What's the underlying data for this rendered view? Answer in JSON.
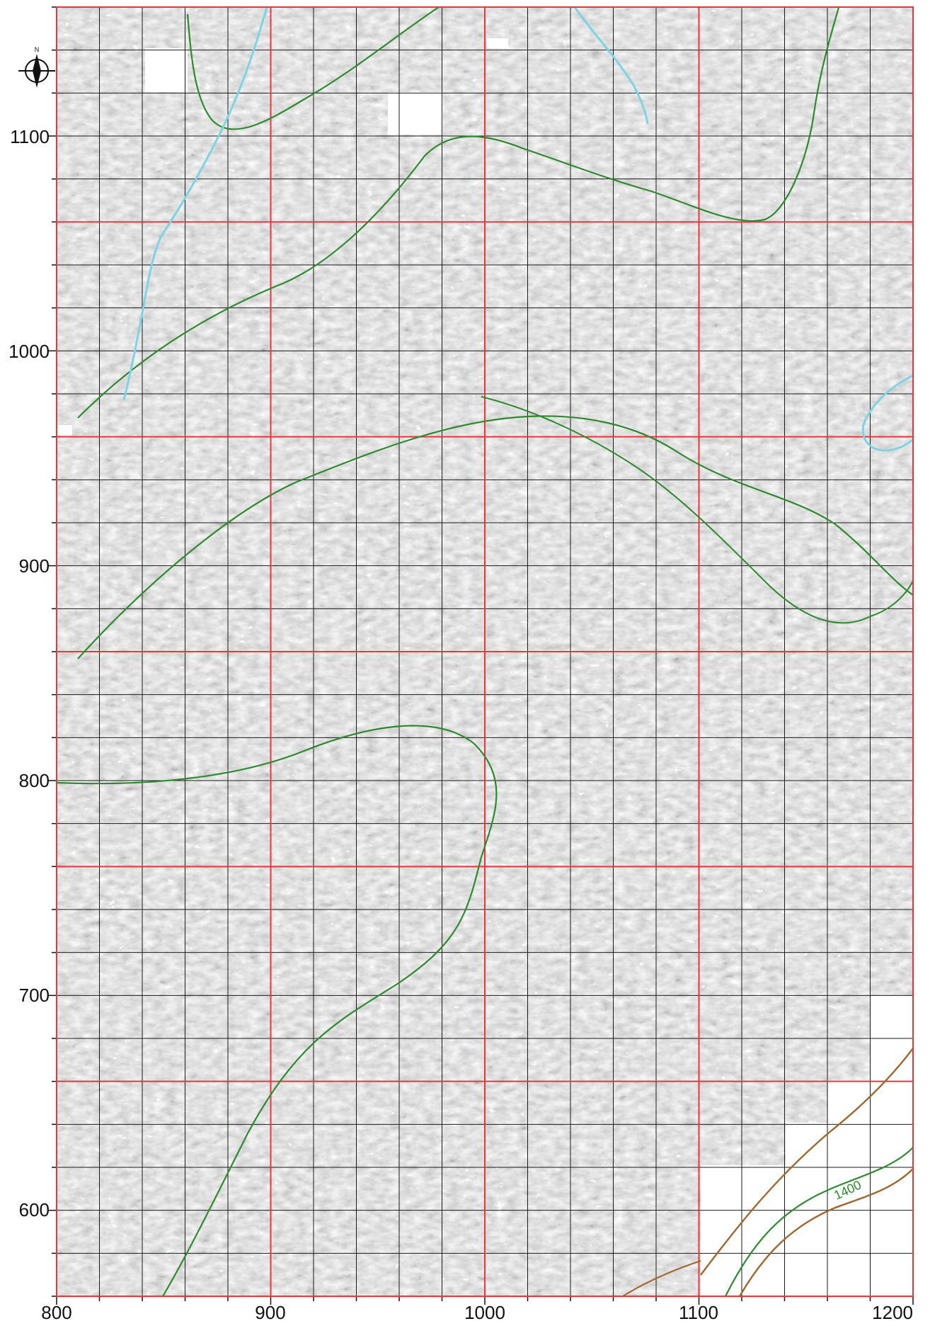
{
  "map": {
    "x_axis_ticks": [
      "800",
      "900",
      "1000",
      "1100",
      "1200"
    ],
    "y_axis_ticks": [
      "1100",
      "1000",
      "900",
      "800",
      "700",
      "600"
    ],
    "x_range": [
      800,
      1200
    ],
    "y_range": [
      560,
      1160
    ],
    "major_grid_interval": 100,
    "minor_grid_interval": 20,
    "major_grid_color": "#e8363d",
    "minor_grid_color": "#1a1a1a",
    "contour_label": "1400",
    "north_arrow_letter": "N",
    "colors": {
      "background": "#8c8c8c",
      "contour_green": "#2f8a2f",
      "contour_brown": "#a0662e",
      "stream_cyan": "#7fd3e3"
    }
  }
}
